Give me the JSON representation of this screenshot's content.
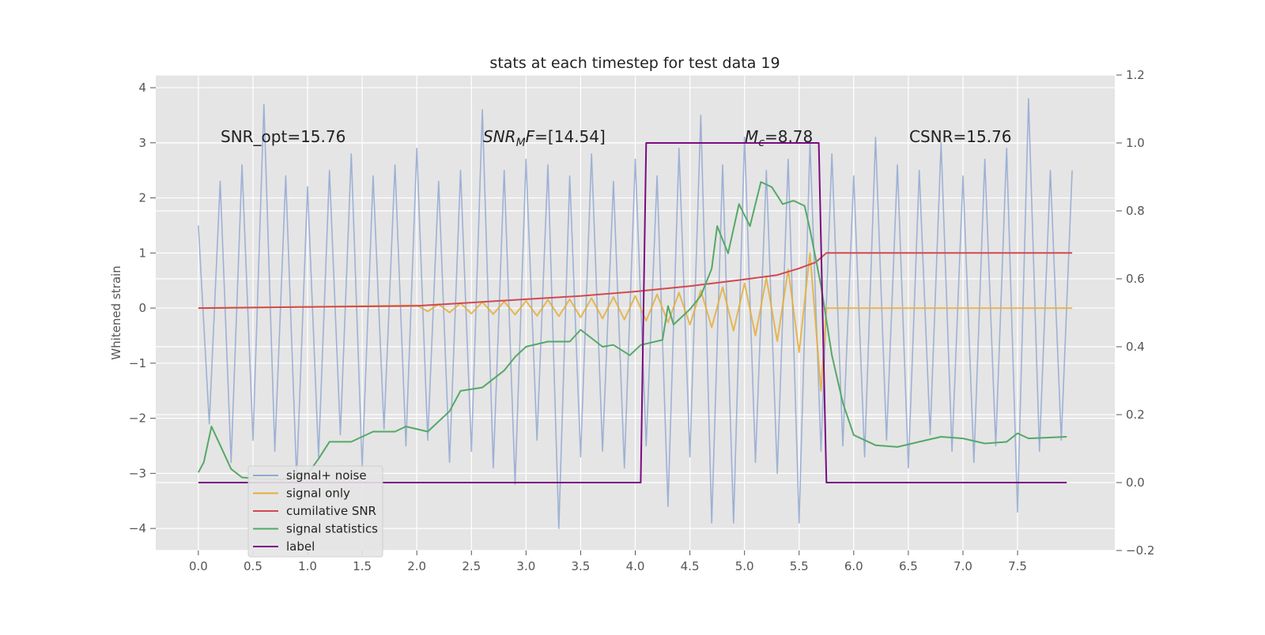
{
  "chart_data": {
    "type": "line",
    "title": "stats at each timestep for test data 19",
    "ylabel": "Whitened strain",
    "xlim": [
      -0.39,
      8.39
    ],
    "ylim": [
      -4.4,
      4.23
    ],
    "y2lim": [
      -0.2,
      1.2
    ],
    "xticks": [
      {
        "value": 0,
        "label": "0.0"
      },
      0.5,
      {
        "value": 1,
        "label": "1.0"
      },
      1.5,
      {
        "value": 2,
        "label": "2.0"
      },
      2.5,
      {
        "value": 3,
        "label": "3.0"
      },
      3.5,
      {
        "value": 4,
        "label": "4.0"
      },
      4.5,
      {
        "value": 5,
        "label": "5.0"
      },
      5.5,
      {
        "value": 6,
        "label": "6.0"
      },
      6.5,
      {
        "value": 7,
        "label": "7.0"
      },
      7.5
    ],
    "yticks": [
      {
        "value": -4,
        "label": "−4"
      },
      {
        "value": -3,
        "label": "−3"
      },
      {
        "value": -2,
        "label": "−2"
      },
      {
        "value": -1,
        "label": "−1"
      },
      0,
      1,
      2,
      3,
      4
    ],
    "y2ticks": [
      {
        "value": -0.2,
        "label": "−0.2"
      },
      {
        "value": 0,
        "label": "0.0"
      },
      0.2,
      0.4,
      0.6,
      0.8,
      {
        "value": 1,
        "label": "1.0"
      },
      1.2
    ],
    "grid": true,
    "legend": "lower left",
    "annotations": [
      [
        {
          "text": "SNR_opt=15.76",
          "style": "normal"
        }
      ],
      [
        {
          "text": "SNR",
          "style": "italic"
        },
        {
          "text": "M",
          "style": "sub"
        },
        {
          "text": "F",
          "style": "italic"
        },
        {
          "text": "=[14.54]",
          "style": "normal"
        }
      ],
      [
        {
          "text": "M",
          "style": "italic"
        },
        {
          "text": "c",
          "style": "sub"
        },
        {
          "text": "=8.78",
          "style": "normal"
        }
      ],
      [
        {
          "text": "CSNR=15.76",
          "style": "normal"
        }
      ]
    ],
    "series": [
      {
        "name": "signal+ noise",
        "color": "#92a8d1",
        "axis": "y",
        "x": [
          0,
          0.1,
          0.2,
          0.3,
          0.4,
          0.5,
          0.6,
          0.7,
          0.8,
          0.9,
          1,
          1.1,
          1.2,
          1.3,
          1.4,
          1.5,
          1.6,
          1.7,
          1.8,
          1.9,
          2,
          2.1,
          2.2,
          2.3,
          2.4,
          2.5,
          2.6,
          2.7,
          2.8,
          2.9,
          3,
          3.1,
          3.2,
          3.3,
          3.4,
          3.5,
          3.6,
          3.7,
          3.8,
          3.9,
          4,
          4.1,
          4.2,
          4.3,
          4.4,
          4.5,
          4.6,
          4.7,
          4.8,
          4.9,
          5,
          5.1,
          5.2,
          5.3,
          5.4,
          5.5,
          5.6,
          5.7,
          5.8,
          5.9,
          6,
          6.1,
          6.2,
          6.3,
          6.4,
          6.5,
          6.6,
          6.7,
          6.8,
          6.9,
          7,
          7.1,
          7.2,
          7.3,
          7.4,
          7.5,
          7.6,
          7.7,
          7.8,
          7.9,
          8
        ],
        "values": [
          1.5,
          -2.1,
          2.3,
          -2.8,
          2.6,
          -2.4,
          3.7,
          -2.6,
          2.4,
          -3.1,
          2.2,
          -2.7,
          2.5,
          -2.3,
          2.8,
          -2.9,
          2.4,
          -2.2,
          2.6,
          -2.5,
          2.9,
          -2.4,
          2.3,
          -2.8,
          2.5,
          -2.6,
          3.6,
          -2.9,
          2.5,
          -3.2,
          2.7,
          -2.4,
          2.6,
          -4.0,
          2.4,
          -2.7,
          2.8,
          -2.6,
          2.3,
          -2.9,
          2.7,
          -2.5,
          2.4,
          -3.6,
          2.9,
          -2.7,
          3.5,
          -3.9,
          2.6,
          -3.9,
          3.1,
          -2.8,
          2.5,
          -3.0,
          2.7,
          -3.9,
          3.0,
          -2.6,
          2.8,
          -2.5,
          2.4,
          -2.7,
          3.1,
          -2.4,
          2.6,
          -2.9,
          2.5,
          -2.3,
          3.0,
          -2.6,
          2.4,
          -2.8,
          2.7,
          -2.5,
          2.9,
          -3.7,
          3.8,
          -2.6,
          2.5,
          -2.4,
          2.5
        ]
      },
      {
        "name": "signal only",
        "color": "#e5ae38",
        "axis": "y",
        "x": [
          0,
          2,
          2.1,
          2.2,
          2.3,
          2.4,
          2.5,
          2.6,
          2.7,
          2.8,
          2.9,
          3,
          3.1,
          3.2,
          3.3,
          3.4,
          3.5,
          3.6,
          3.7,
          3.8,
          3.9,
          4,
          4.1,
          4.2,
          4.3,
          4.4,
          4.5,
          4.6,
          4.7,
          4.8,
          4.9,
          5,
          5.1,
          5.2,
          5.3,
          5.4,
          5.5,
          5.6,
          5.7,
          5.75,
          8
        ],
        "values": [
          0,
          0.05,
          -0.06,
          0.07,
          -0.08,
          0.09,
          -0.1,
          0.11,
          -0.11,
          0.12,
          -0.12,
          0.13,
          -0.14,
          0.15,
          -0.15,
          0.16,
          -0.17,
          0.18,
          -0.19,
          0.2,
          -0.21,
          0.22,
          -0.23,
          0.25,
          -0.26,
          0.28,
          -0.3,
          0.32,
          -0.35,
          0.38,
          -0.41,
          0.45,
          -0.5,
          0.55,
          -0.6,
          0.7,
          -0.8,
          1.0,
          -1.5,
          0,
          0
        ]
      },
      {
        "name": "cumilative SNR",
        "color": "#d1494e",
        "axis": "y",
        "x": [
          0,
          1,
          2,
          2.5,
          3,
          3.5,
          4,
          4.5,
          5,
          5.3,
          5.5,
          5.65,
          5.75,
          8
        ],
        "values": [
          0,
          0.02,
          0.04,
          0.1,
          0.16,
          0.22,
          0.3,
          0.4,
          0.52,
          0.6,
          0.72,
          0.83,
          1,
          1
        ]
      },
      {
        "name": "signal statistics",
        "color": "#55a868",
        "axis": "y2",
        "x": [
          0,
          0.05,
          0.12,
          0.2,
          0.3,
          0.4,
          0.6,
          0.8,
          1,
          1.1,
          1.2,
          1.4,
          1.6,
          1.8,
          1.9,
          2.1,
          2.3,
          2.4,
          2.6,
          2.8,
          2.9,
          3,
          3.2,
          3.4,
          3.5,
          3.7,
          3.8,
          3.95,
          4.05,
          4.25,
          4.3,
          4.35,
          4.5,
          4.6,
          4.7,
          4.75,
          4.85,
          4.95,
          5.05,
          5.15,
          5.25,
          5.35,
          5.45,
          5.55,
          5.6,
          5.7,
          5.8,
          5.9,
          6,
          6.2,
          6.4,
          6.6,
          6.8,
          7,
          7.2,
          7.4,
          7.5,
          7.6,
          7.95
        ],
        "values": [
          0.03,
          0.06,
          0.165,
          0.11,
          0.04,
          0.015,
          0.01,
          0.01,
          0.025,
          0.07,
          0.12,
          0.12,
          0.15,
          0.15,
          0.165,
          0.15,
          0.21,
          0.27,
          0.28,
          0.33,
          0.37,
          0.4,
          0.415,
          0.415,
          0.45,
          0.4,
          0.405,
          0.375,
          0.405,
          0.42,
          0.52,
          0.465,
          0.51,
          0.55,
          0.63,
          0.755,
          0.675,
          0.82,
          0.755,
          0.885,
          0.87,
          0.82,
          0.83,
          0.815,
          0.745,
          0.58,
          0.375,
          0.235,
          0.14,
          0.11,
          0.105,
          0.12,
          0.135,
          0.13,
          0.115,
          0.12,
          0.145,
          0.13,
          0.135
        ]
      },
      {
        "name": "label",
        "color": "#7b0a82",
        "axis": "y2",
        "x": [
          0,
          4.05,
          4.1,
          5.68,
          5.75,
          7.95
        ],
        "values": [
          0,
          0,
          1,
          1,
          0,
          0
        ]
      }
    ]
  }
}
